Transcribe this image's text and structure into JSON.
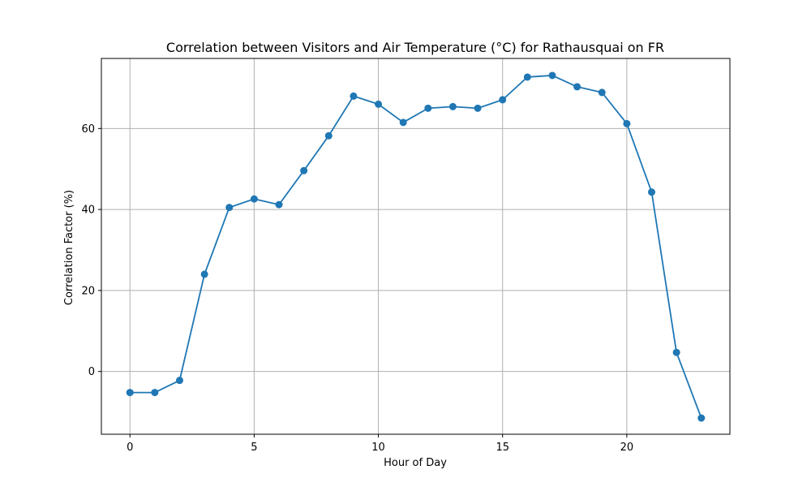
{
  "chart_data": {
    "type": "line",
    "title": "Correlation between Visitors and Air Temperature (°C) for Rathausquai on FR",
    "xlabel": "Hour of Day",
    "ylabel": "Correlation Factor (%)",
    "xlim": [
      -1.15,
      24.15
    ],
    "ylim": [
      -15.5,
      77.3
    ],
    "xticks": [
      0,
      5,
      10,
      15,
      20
    ],
    "yticks": [
      0,
      20,
      40,
      60
    ],
    "xtick_labels": [
      "0",
      "5",
      "10",
      "15",
      "20"
    ],
    "ytick_labels": [
      "0",
      "20",
      "40",
      "60"
    ],
    "grid": true,
    "legend": false,
    "color": "#1f77b4",
    "x": [
      0,
      1,
      2,
      3,
      4,
      5,
      6,
      7,
      8,
      9,
      10,
      11,
      12,
      13,
      14,
      15,
      16,
      17,
      18,
      19,
      20,
      21,
      22,
      23
    ],
    "y": [
      -5.2,
      -5.2,
      -2.2,
      24.0,
      40.5,
      42.6,
      41.2,
      49.6,
      58.2,
      68.0,
      66.0,
      61.5,
      65.0,
      65.4,
      65.0,
      67.1,
      72.7,
      73.1,
      70.3,
      68.9,
      61.2,
      44.3,
      4.7,
      -11.5
    ]
  }
}
